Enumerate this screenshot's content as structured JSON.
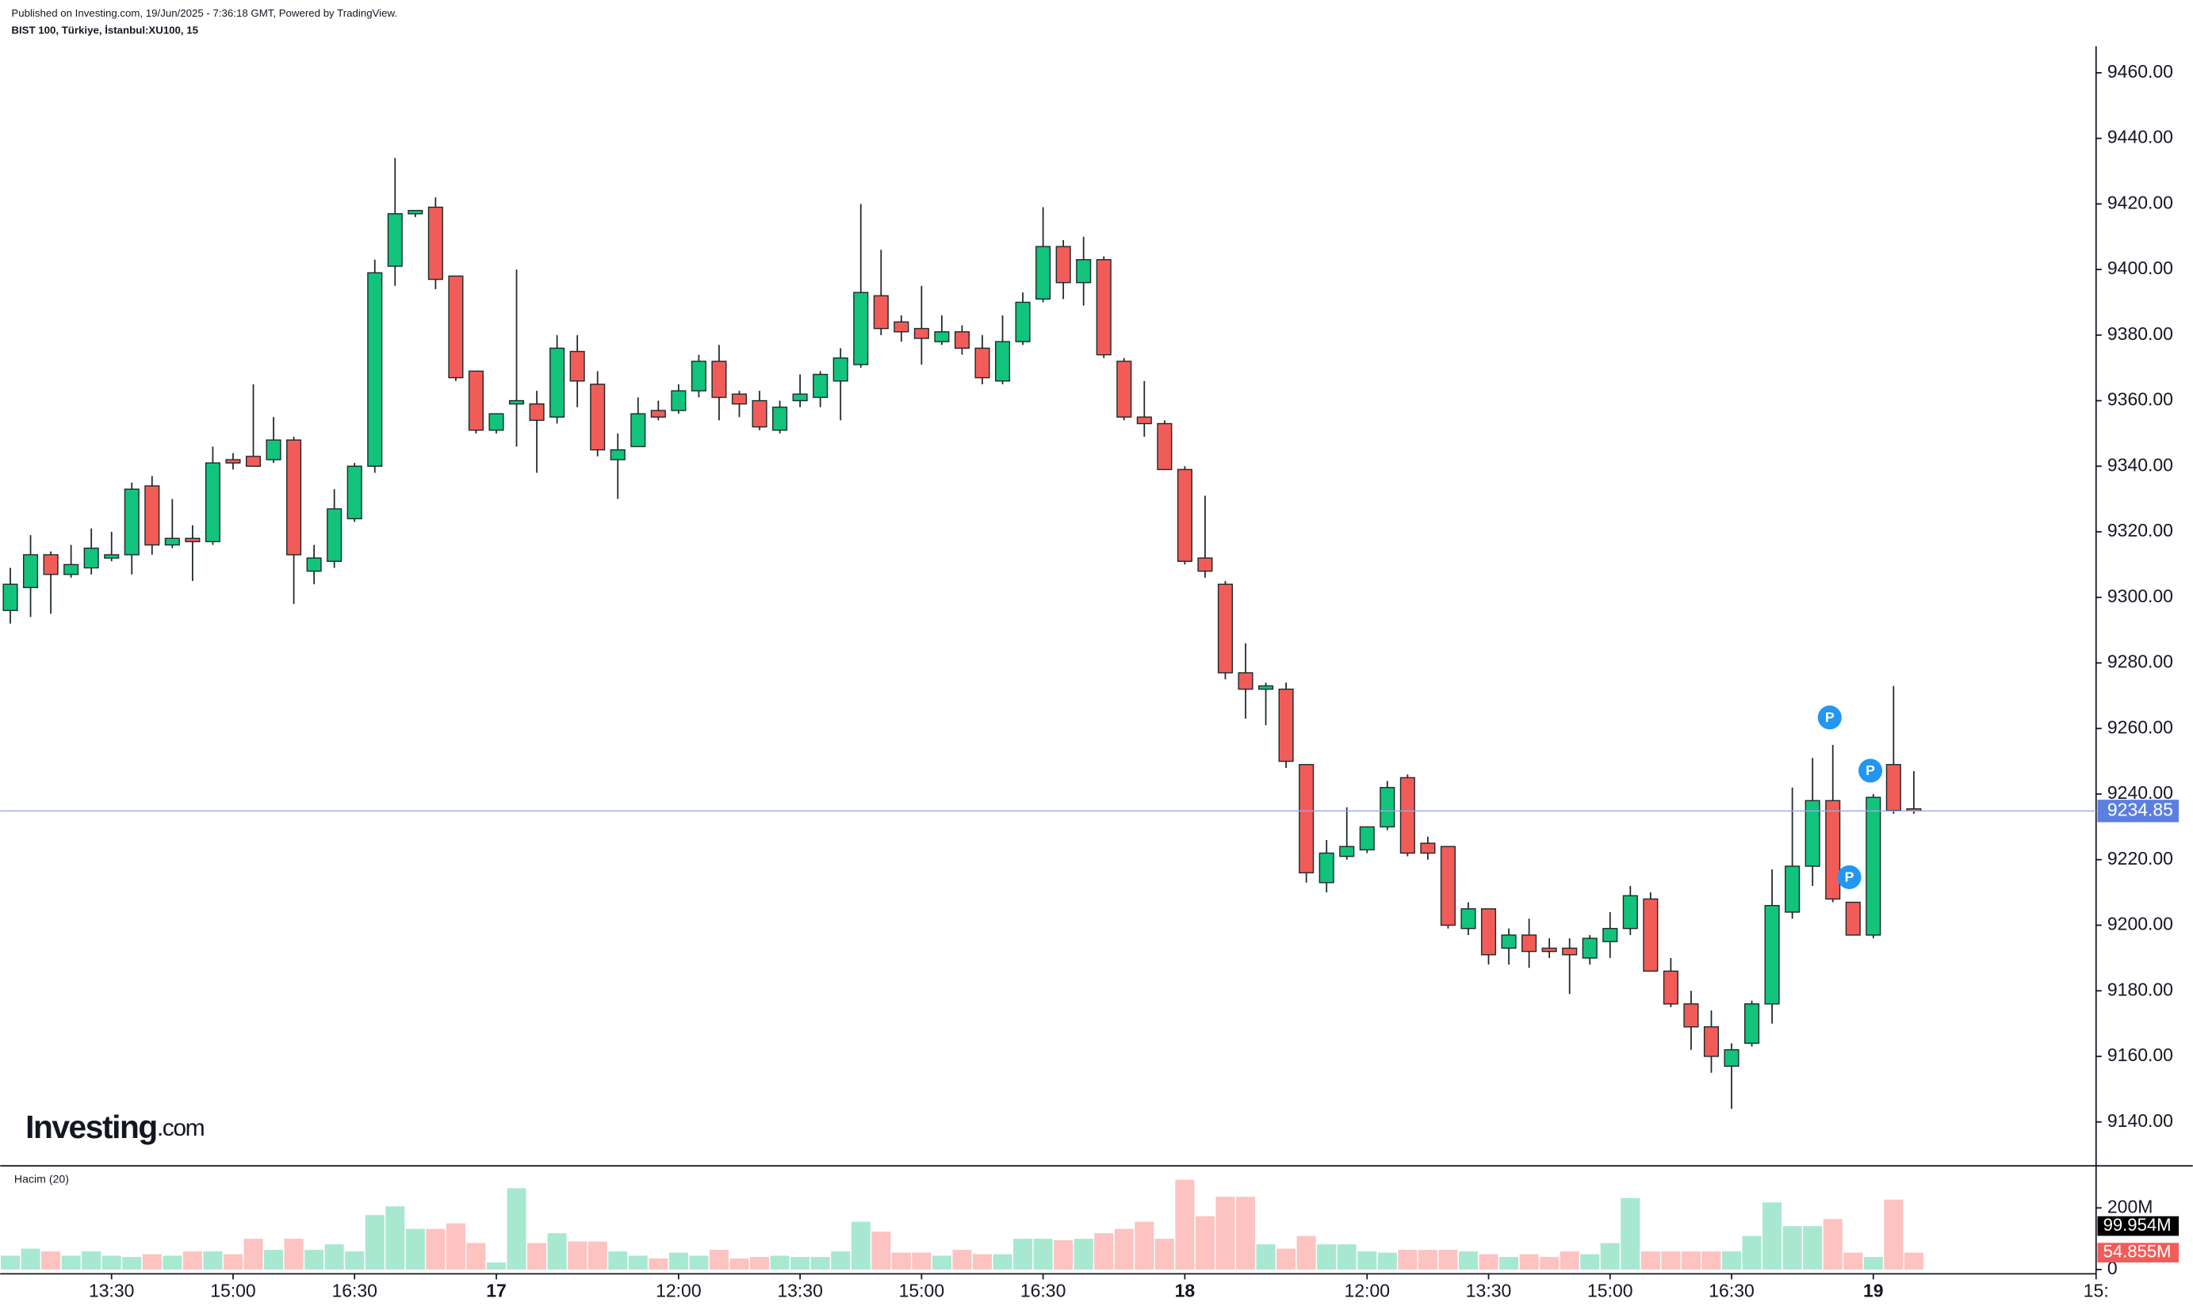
{
  "chart_data": {
    "type": "candlestick",
    "published": "Published on Investing.com, 19/Jun/2025 - 7:36:18 GMT, Powered by TradingView.",
    "symbol": "BIST 100, Türkiye, İstanbul:XU100, 15",
    "logo": {
      "name": "Investing",
      "suffix": ".com"
    },
    "volume_title": "Hacim (20)",
    "annotations": [
      "P",
      "P",
      "P"
    ],
    "up_color": "#12c37c",
    "down_color": "#f25c58",
    "volume_up_color": "#a8e8d0",
    "volume_down_color": "#fcc3c1",
    "last_price_color": "#5b7fe0",
    "open": [
      9296,
      9303,
      9313,
      9307,
      9309,
      9312,
      9313,
      9334,
      9316,
      9318,
      9317,
      9342,
      9343,
      9342,
      9348,
      9308,
      9311,
      9324,
      9340,
      9401,
      9417,
      9419,
      9398,
      9369,
      9351,
      9359,
      9359,
      9355,
      9375,
      9365,
      9342,
      9346,
      9357,
      9357,
      9363,
      9372,
      9362,
      9360,
      9351,
      9360,
      9361,
      9366,
      9371,
      9392,
      9384,
      9382,
      9378,
      9381,
      9376,
      9366,
      9378,
      9391,
      9407,
      9396,
      9403,
      9372,
      9355,
      9353,
      9339,
      9312,
      9304,
      9277,
      9272,
      9272,
      9249,
      9213,
      9221,
      9223,
      9230,
      9245,
      9225,
      9224,
      9199,
      9205,
      9193,
      9197,
      9193,
      9193,
      9190,
      9195,
      9199,
      9208,
      9186,
      9176,
      9169,
      9157,
      9164,
      9176,
      9204,
      9218,
      9238,
      9207,
      9197,
      9249,
      9235.5
    ],
    "high": [
      9309,
      9319,
      9314,
      9316,
      9321,
      9320,
      9335,
      9337,
      9330,
      9322,
      9346,
      9344,
      9365,
      9355,
      9349,
      9316,
      9333,
      9341,
      9403,
      9434,
      9418,
      9422,
      9398,
      9369,
      9356,
      9400,
      9363,
      9380,
      9380,
      9369,
      9350,
      9361,
      9360,
      9365,
      9374,
      9377,
      9363,
      9363,
      9360,
      9368,
      9369,
      9376,
      9420,
      9406,
      9386,
      9395,
      9386,
      9383,
      9380,
      9386,
      9393,
      9419,
      9409,
      9410,
      9404,
      9373,
      9366,
      9354,
      9340,
      9331,
      9305,
      9286,
      9274,
      9274,
      9249,
      9226,
      9236,
      9230,
      9244,
      9246,
      9227,
      9224,
      9207,
      9205,
      9199,
      9202,
      9196,
      9196,
      9197,
      9204,
      9212,
      9210,
      9190,
      9180,
      9174,
      9164,
      9177,
      9217,
      9242,
      9251,
      9255,
      9207,
      9240,
      9273,
      9247
    ],
    "low": [
      9292,
      9294,
      9295,
      9306,
      9307,
      9311,
      9307,
      9313,
      9315,
      9305,
      9316,
      9339,
      9340,
      9341,
      9298,
      9304,
      9309,
      9323,
      9338,
      9395,
      9416,
      9394,
      9366,
      9350,
      9350,
      9346,
      9338,
      9353,
      9358,
      9343,
      9330,
      9346,
      9354,
      9356,
      9361,
      9354,
      9355,
      9351,
      9350,
      9358,
      9358,
      9354,
      9370,
      9380,
      9378,
      9371,
      9377,
      9374,
      9365,
      9365,
      9377,
      9390,
      9391,
      9389,
      9373,
      9354,
      9349,
      9339,
      9310,
      9306,
      9275,
      9263,
      9261,
      9248,
      9213,
      9210,
      9220,
      9222,
      9229,
      9221,
      9220,
      9199,
      9197,
      9188,
      9188,
      9187,
      9190,
      9179,
      9188,
      9190,
      9197,
      9186,
      9175,
      9162,
      9155,
      9144,
      9163,
      9170,
      9202,
      9212,
      9207,
      9197,
      9196,
      9234,
      9234
    ],
    "close": [
      9304,
      9313,
      9307,
      9310,
      9315,
      9313,
      9333,
      9316,
      9318,
      9317,
      9341,
      9341,
      9340,
      9348,
      9313,
      9312,
      9327,
      9340,
      9399,
      9417,
      9418,
      9397,
      9367,
      9351,
      9356,
      9360,
      9354,
      9376,
      9366,
      9345,
      9345,
      9356,
      9355,
      9363,
      9372,
      9361,
      9359,
      9352,
      9358,
      9362,
      9368,
      9373,
      9393,
      9382,
      9381,
      9379,
      9381,
      9376,
      9367,
      9378,
      9390,
      9407,
      9396,
      9403,
      9374,
      9355,
      9353,
      9339,
      9311,
      9308,
      9277,
      9272,
      9273,
      9250,
      9216,
      9222,
      9224,
      9230,
      9242,
      9222,
      9222,
      9200,
      9205,
      9191,
      9197,
      9192,
      9192,
      9191,
      9196,
      9199,
      9209,
      9186,
      9176,
      9169,
      9160,
      9162,
      9176,
      9206,
      9218,
      9238,
      9208,
      9197,
      9239,
      9235,
      9234.85
    ],
    "volume": [
      45,
      68,
      59,
      45,
      59,
      45,
      41,
      50,
      45,
      59,
      59,
      50,
      100,
      64,
      100,
      64,
      82,
      59,
      177,
      205,
      132,
      132,
      150,
      86,
      23,
      264,
      86,
      118,
      91,
      91,
      59,
      45,
      36,
      55,
      45,
      64,
      36,
      41,
      45,
      41,
      41,
      59,
      155,
      123,
      55,
      55,
      45,
      64,
      50,
      50,
      100,
      100,
      95,
      100,
      118,
      132,
      155,
      100,
      291,
      173,
      236,
      236,
      82,
      68,
      109,
      82,
      82,
      59,
      55,
      64,
      64,
      64,
      59,
      50,
      41,
      50,
      41,
      59,
      50,
      86,
      232,
      59,
      59,
      59,
      59,
      59,
      109,
      218,
      141,
      141,
      164,
      55,
      41,
      227,
      54.855
    ],
    "volume_labels_last": "54.855M",
    "volume_ma_last": 99.954,
    "volume_ma_last_label": "99.954M",
    "xlim": [
      -0.5,
      103
    ],
    "xticks": [
      {
        "value": 5,
        "label": "13:30"
      },
      {
        "value": 11,
        "label": "15:00"
      },
      {
        "value": 17,
        "label": "16:30"
      },
      {
        "value": 24,
        "label": "17"
      },
      {
        "value": 33,
        "label": "12:00"
      },
      {
        "value": 39,
        "label": "13:30"
      },
      {
        "value": 45,
        "label": "15:00"
      },
      {
        "value": 51,
        "label": "16:30"
      },
      {
        "value": 58,
        "label": "18"
      },
      {
        "value": 67,
        "label": "12:00"
      },
      {
        "value": 73,
        "label": "13:30"
      },
      {
        "value": 79,
        "label": "15:00"
      },
      {
        "value": 85,
        "label": "16:30"
      },
      {
        "value": 92,
        "label": "19"
      },
      {
        "value": 103,
        "label": "15:"
      }
    ],
    "ylim": [
      9126.6,
      9468.1
    ],
    "yticks": [
      {
        "value": 9140,
        "label": "9140.00"
      },
      {
        "value": 9160,
        "label": "9160.00"
      },
      {
        "value": 9180,
        "label": "9180.00"
      },
      {
        "value": 9200,
        "label": "9200.00"
      },
      {
        "value": 9220,
        "label": "9220.00"
      },
      {
        "value": 9240,
        "label": "9240.00"
      },
      {
        "value": 9260,
        "label": "9260.00"
      },
      {
        "value": 9280,
        "label": "9280.00"
      },
      {
        "value": 9300,
        "label": "9300.00"
      },
      {
        "value": 9320,
        "label": "9320.00"
      },
      {
        "value": 9340,
        "label": "9340.00"
      },
      {
        "value": 9360,
        "label": "9360.00"
      },
      {
        "value": 9380,
        "label": "9380.00"
      },
      {
        "value": 9400,
        "label": "9400.00"
      },
      {
        "value": 9420,
        "label": "9420.00"
      },
      {
        "value": 9440,
        "label": "9440.00"
      },
      {
        "value": 9460,
        "label": "9460.00"
      }
    ],
    "y2lim": [
      -13.6,
      331.8
    ],
    "y2ticks": [
      0,
      {
        "value": 200,
        "label": "200M"
      }
    ]
  }
}
